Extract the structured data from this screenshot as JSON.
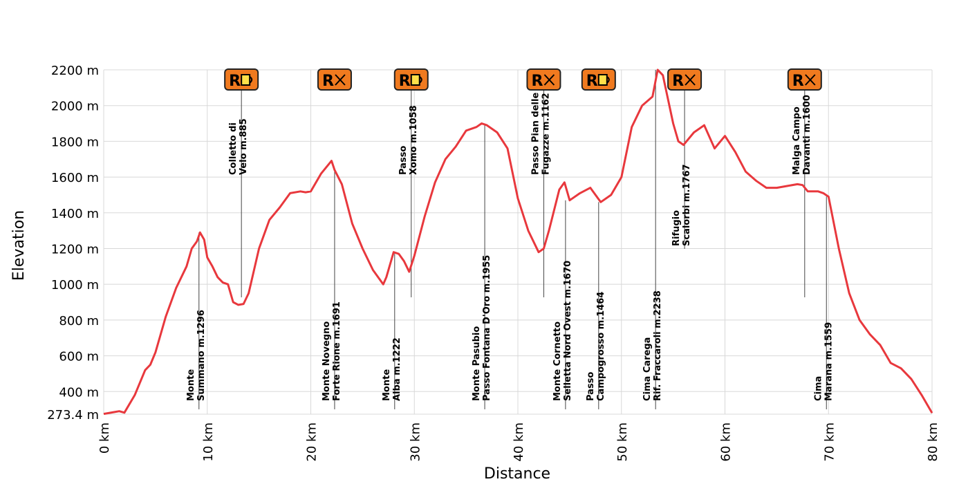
{
  "chart_data": {
    "type": "line",
    "title": "",
    "xlabel": "Distance",
    "ylabel": "Elevation",
    "xlim": [
      0,
      80
    ],
    "ylim": [
      273.4,
      2200
    ],
    "x_ticks": [
      "0 km",
      "10 km",
      "20 km",
      "30 km",
      "40 km",
      "50 km",
      "60 km",
      "70 km",
      "80 km"
    ],
    "y_ticks": [
      "2200 m",
      "2000 m",
      "1800 m",
      "1600 m",
      "1400 m",
      "1200 m",
      "1000 m",
      "800 m",
      "600 m",
      "400 m",
      "273.4 m"
    ],
    "y_tick_values": [
      2200,
      2000,
      1800,
      1600,
      1400,
      1200,
      1000,
      800,
      600,
      400,
      273.4
    ],
    "grid": true,
    "line_color": "#e8383d",
    "badge_color": "#f07a1f",
    "series": [
      {
        "x": [
          0,
          1,
          1.5,
          2,
          3,
          4,
          4.5,
          5,
          6,
          7,
          8,
          8.5,
          9,
          9.3,
          9.7,
          10,
          10.5,
          11,
          11.5,
          12,
          12.5,
          13,
          13.5,
          14,
          15,
          16,
          17,
          18,
          19,
          19.5,
          20,
          21,
          22,
          22.3,
          23,
          24,
          25,
          26,
          27,
          27.3,
          28,
          28.5,
          29,
          29.5,
          30,
          31,
          32,
          33,
          34,
          35,
          36,
          36.5,
          37,
          38,
          39,
          40,
          41,
          42,
          42.5,
          43,
          44,
          44.5,
          45,
          46,
          47,
          48,
          49,
          50,
          51,
          52,
          53,
          53.5,
          54,
          55,
          55.5,
          56,
          57,
          58,
          59,
          60,
          61,
          62,
          63,
          64,
          65,
          66,
          67,
          67.5,
          68,
          69,
          69.5,
          70,
          71,
          72,
          73,
          74,
          75,
          76,
          77,
          78,
          79,
          80
        ],
        "y": [
          275,
          285,
          290,
          282,
          380,
          520,
          550,
          620,
          820,
          980,
          1100,
          1200,
          1240,
          1290,
          1250,
          1150,
          1100,
          1040,
          1010,
          1000,
          900,
          885,
          890,
          950,
          1200,
          1360,
          1430,
          1510,
          1520,
          1515,
          1520,
          1620,
          1691,
          1640,
          1560,
          1340,
          1200,
          1080,
          1000,
          1040,
          1180,
          1170,
          1130,
          1070,
          1160,
          1380,
          1570,
          1700,
          1770,
          1860,
          1880,
          1900,
          1890,
          1850,
          1760,
          1480,
          1300,
          1180,
          1200,
          1300,
          1530,
          1570,
          1470,
          1510,
          1540,
          1460,
          1500,
          1600,
          1880,
          2000,
          2050,
          2200,
          2170,
          1900,
          1800,
          1780,
          1850,
          1890,
          1760,
          1830,
          1740,
          1630,
          1580,
          1540,
          1540,
          1550,
          1560,
          1555,
          1520,
          1520,
          1510,
          1490,
          1200,
          950,
          800,
          720,
          660,
          560,
          530,
          470,
          380,
          280
        ]
      }
    ],
    "poi_labels": [
      {
        "km": 9.2,
        "lines": [
          "Monte",
          "Summano  m.1296"
        ],
        "mode": "bottom"
      },
      {
        "km": 13.3,
        "lines": [
          "Colletto di",
          "Velo m.885"
        ],
        "mode": "top"
      },
      {
        "km": 22.3,
        "lines": [
          "Monte Novegno",
          "Forte Rione  m.1691"
        ],
        "mode": "bottom"
      },
      {
        "km": 28.1,
        "lines": [
          "Monte",
          "Alba  m.1222"
        ],
        "mode": "bottom"
      },
      {
        "km": 29.7,
        "lines": [
          "Passo",
          "Xomo m.1058"
        ],
        "mode": "top"
      },
      {
        "km": 36.8,
        "lines": [
          "Monte Pasubio",
          "Passo Fontana D'Oro m.1955"
        ],
        "mode": "bottom"
      },
      {
        "km": 42.5,
        "lines": [
          "Passo Pian delle",
          "Fugazze  m.1162"
        ],
        "mode": "top"
      },
      {
        "km": 44.6,
        "lines": [
          "Monte Cornetto",
          "Selletta Nord Ovest  m.1670"
        ],
        "mode": "bottom"
      },
      {
        "km": 47.8,
        "lines": [
          "Passo",
          "Campogrosso  m.1464"
        ],
        "mode": "bottom"
      },
      {
        "km": 53.3,
        "lines": [
          "Cima Carega",
          "Rif. Fraccaroli  m.2238"
        ],
        "mode": "bottom"
      },
      {
        "km": 56.1,
        "lines": [
          "Rifugio",
          "Scalorbi  m.1767"
        ],
        "mode": "mid"
      },
      {
        "km": 67.7,
        "lines": [
          "Malga Campo",
          "Davanti m.1600"
        ],
        "mode": "top"
      },
      {
        "km": 69.8,
        "lines": [
          "Cima",
          "Marana  m.1559"
        ],
        "mode": "bottom"
      }
    ],
    "badges": [
      {
        "km": 13.3,
        "letter": "R",
        "icon": "shelter-icon"
      },
      {
        "km": 22.3,
        "letter": "R",
        "icon": "restaurant-icon"
      },
      {
        "km": 29.7,
        "letter": "R",
        "icon": "shelter-icon"
      },
      {
        "km": 42.5,
        "letter": "R",
        "icon": "restaurant-icon"
      },
      {
        "km": 47.8,
        "letter": "R",
        "icon": "shelter-icon"
      },
      {
        "km": 56.1,
        "letter": "R",
        "icon": "restaurant-icon"
      },
      {
        "km": 67.7,
        "letter": "R",
        "icon": "restaurant-icon"
      }
    ]
  }
}
